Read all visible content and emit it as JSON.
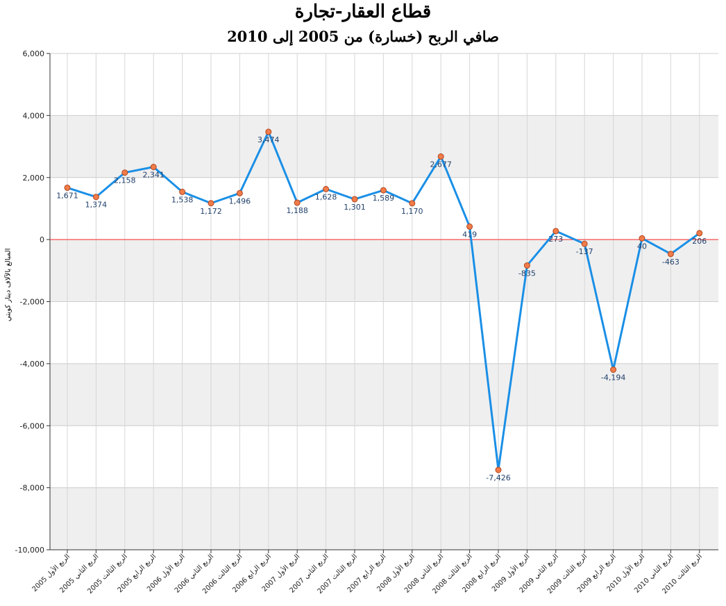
{
  "title": "قطاع العقار-تجارة",
  "subtitle": "صافي الربح (خسارة) من 2005 إلى 2010",
  "chart_data": {
    "type": "line",
    "title": "قطاع العقار-تجارة",
    "subtitle": "صافي الربح (خسارة) من 2005 إلى 2010",
    "ylabel": "المبالغ بالآلاف دينار كويتي",
    "xlabel": "",
    "ylim": [
      -10000,
      6000
    ],
    "yticks": [
      6000,
      4000,
      2000,
      0,
      -2000,
      -4000,
      -6000,
      -8000,
      -10000
    ],
    "ytick_labels": [
      "6,000",
      "4,000",
      "2,000",
      "0",
      "-2,000",
      "-4,000",
      "-6,000",
      "-8,000",
      "-10,000"
    ],
    "grid": "horizontal bands and vertical lines",
    "categories": [
      "الربع الأول 2005",
      "الربع الثاني 2005",
      "الربع الثالث 2005",
      "الربع الرابع 2005",
      "الربع الأول 2006",
      "الربع الثاني 2006",
      "الربع الثالث 2006",
      "الربع الرابع 2006",
      "الربع الأول 2007",
      "الربع الثاني 2007",
      "الربع الثالث 2007",
      "الربع الرابع 2007",
      "الربع الأول 2008",
      "الربع الثاني 2008",
      "الربع الثالث 2008",
      "الربع الرابع 2008",
      "الربع الأول 2009",
      "الربع الثاني 2009",
      "الربع الثالث 2009",
      "الربع الرابع 2009",
      "الربع الأول 2010",
      "الربع الثاني 2010",
      "الربع الثالث 2010"
    ],
    "series": [
      {
        "values": [
          1671,
          1374,
          2158,
          2341,
          1538,
          1172,
          1496,
          3474,
          1188,
          1628,
          1301,
          1589,
          1170,
          2677,
          419,
          -7426,
          -835,
          273,
          -137,
          -4194,
          40,
          -463,
          206
        ],
        "labels": [
          "1,671",
          "1,374",
          "2,158",
          "2,341",
          "1,538",
          "1,172",
          "1,496",
          "3,474",
          "1,188",
          "1,628",
          "1,301",
          "1,589",
          "1,170",
          "2,677",
          "419",
          "-7,426",
          "-835",
          "273",
          "-137",
          "-4,194",
          "40",
          "-463",
          "206"
        ]
      }
    ],
    "colors": {
      "line": "#1a8fe6",
      "marker_fill": "#f07c4a",
      "marker_stroke": "#b0451f",
      "zero_line": "#ff2a2a",
      "band": "#efefef",
      "grid": "#cccccc",
      "label": "#1f3f6b"
    }
  }
}
